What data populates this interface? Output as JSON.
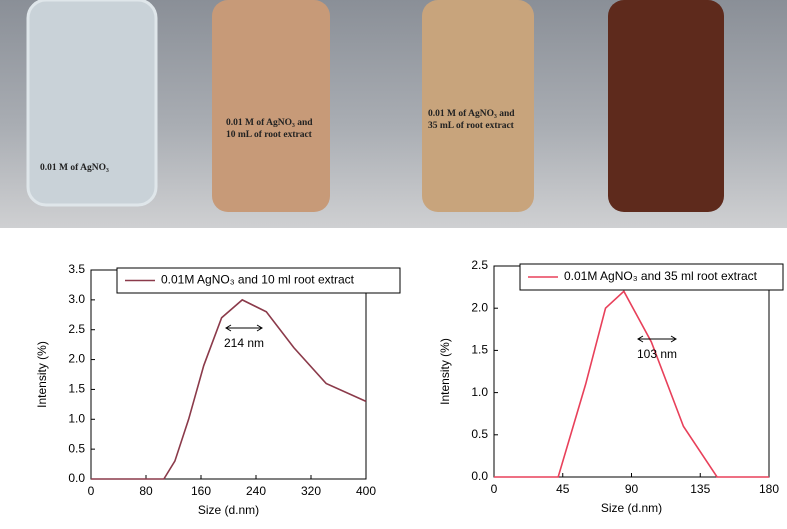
{
  "photo": {
    "labels": [
      [
        "0.01 M of AgNO₃"
      ],
      [
        "0.01 M of AgNO₃ and",
        "10 mL of root extract"
      ],
      [
        "0.01 M of AgNO₃ and",
        "35 mL of root extract"
      ]
    ]
  },
  "chart_data": [
    {
      "type": "line",
      "xlabel": "Size (d.nm)",
      "ylabel": "Intensity (%)",
      "annotation": "214 nm",
      "x": [
        0,
        106,
        122,
        142,
        164,
        190,
        220,
        255,
        295,
        342,
        400
      ],
      "series": [
        {
          "name": "0.01M AgNO₃ and 10 ml root extract",
          "color": "#8b3a4a",
          "values": [
            0,
            0,
            0.3,
            1.0,
            1.9,
            2.7,
            3.0,
            2.8,
            2.2,
            1.6,
            1.3
          ]
        }
      ],
      "xlim": [
        0,
        400
      ],
      "xticks": [
        0,
        80,
        160,
        240,
        320,
        400
      ],
      "ylim": [
        0,
        3.5
      ],
      "yticks": [
        {
          "value": 0,
          "label": "0.0"
        },
        0.5,
        {
          "value": 1,
          "label": "1.0"
        },
        1.5,
        {
          "value": 2,
          "label": "2.0"
        },
        2.5,
        {
          "value": 3,
          "label": "3.0"
        },
        3.5
      ]
    },
    {
      "type": "line",
      "xlabel": "Size (d.nm)",
      "ylabel": "Intensity (%)",
      "annotation": "103 nm",
      "x": [
        0,
        42,
        60,
        73,
        85,
        103,
        124,
        146,
        180
      ],
      "series": [
        {
          "name": "0.01M AgNO₃ and 35 ml root extract",
          "color": "#e8405a",
          "values": [
            0,
            0,
            1.1,
            2.0,
            2.2,
            1.6,
            0.6,
            0,
            0
          ]
        }
      ],
      "xlim": [
        0,
        180
      ],
      "xticks": [
        0,
        45,
        90,
        135,
        180
      ],
      "ylim": [
        0,
        2.5
      ],
      "yticks": [
        {
          "value": 0,
          "label": "0.0"
        },
        0.5,
        {
          "value": 1,
          "label": "1.0"
        },
        1.5,
        {
          "value": 2,
          "label": "2.0"
        },
        2.5
      ]
    }
  ]
}
